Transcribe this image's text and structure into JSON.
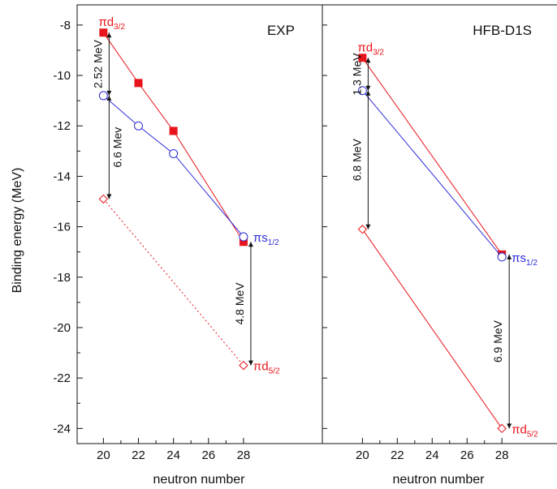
{
  "chart_data": [
    {
      "type": "line",
      "title": "EXP",
      "xlabel": "neutron number",
      "ylabel": "Binding energy (MeV)",
      "xlim": [
        18.5,
        32.5
      ],
      "ylim": [
        -24.6,
        -7.2
      ],
      "x_ticks": [
        "20",
        "22",
        "24",
        "26",
        "28"
      ],
      "y_ticks": [
        "-8",
        "-10",
        "-12",
        "-14",
        "-16",
        "-18",
        "-20",
        "-22",
        "-24"
      ],
      "series": [
        {
          "name": "πd3/2",
          "color": "#e8141b",
          "marker": "filled-square",
          "line": "solid",
          "x": [
            20,
            22,
            24,
            28
          ],
          "y": [
            -8.3,
            -10.3,
            -12.2,
            -16.6
          ]
        },
        {
          "name": "πs1/2",
          "color": "#2d2dd9",
          "marker": "open-circle",
          "line": "solid",
          "x": [
            20,
            22,
            24,
            28
          ],
          "y": [
            -10.8,
            -12.0,
            -13.1,
            -16.4
          ]
        },
        {
          "name": "πd5/2",
          "color": "#e8141b",
          "marker": "open-diamond",
          "line": "dotted",
          "x": [
            20,
            28
          ],
          "y": [
            -14.9,
            -21.5
          ]
        }
      ],
      "level_labels": [
        {
          "base": "πd",
          "sub": "3/2",
          "color": "#e8141b",
          "x": 20,
          "y": -8.3
        },
        {
          "base": "πs",
          "sub": "1/2",
          "color": "#2d2dd9",
          "x": 28,
          "y": -16.4
        },
        {
          "base": "πd",
          "sub": "5/2",
          "color": "#e8141b",
          "x": 28,
          "y": -21.5
        }
      ],
      "annotations": [
        {
          "text": "2.52 MeV",
          "x": 20,
          "from": -8.3,
          "to": -10.8
        },
        {
          "text": "6.6 Mev",
          "x": 20,
          "from": -10.8,
          "to": -14.9
        },
        {
          "text": "4.8 MeV",
          "x": 28,
          "from": -16.6,
          "to": -21.5
        }
      ]
    },
    {
      "type": "line",
      "title": "HFB-D1S",
      "xlabel": "neutron number",
      "ylabel": "",
      "xlim": [
        17.7,
        31.3
      ],
      "ylim": [
        -24.6,
        -7.2
      ],
      "x_ticks": [
        "20",
        "22",
        "24",
        "26",
        "28"
      ],
      "y_ticks": [],
      "series": [
        {
          "name": "πd3/2",
          "color": "#e8141b",
          "marker": "filled-square",
          "line": "solid",
          "x": [
            20,
            28
          ],
          "y": [
            -9.3,
            -17.1
          ]
        },
        {
          "name": "πs1/2",
          "color": "#2d2dd9",
          "marker": "open-circle",
          "line": "solid",
          "x": [
            20,
            28
          ],
          "y": [
            -10.6,
            -17.2
          ]
        },
        {
          "name": "πd5/2",
          "color": "#e8141b",
          "marker": "open-diamond",
          "line": "solid",
          "x": [
            20,
            28
          ],
          "y": [
            -16.1,
            -24.0
          ]
        }
      ],
      "level_labels": [
        {
          "base": "πd",
          "sub": "3/2",
          "color": "#e8141b",
          "x": 20,
          "y": -9.3
        },
        {
          "base": "πs",
          "sub": "1/2",
          "color": "#2d2dd9",
          "x": 28,
          "y": -17.2
        },
        {
          "base": "πd",
          "sub": "5/2",
          "color": "#e8141b",
          "x": 28,
          "y": -24.0
        }
      ],
      "annotations": [
        {
          "text": "1.3 MeV",
          "x": 20,
          "from": -9.3,
          "to": -10.6
        },
        {
          "text": "6.8 MeV",
          "x": 20,
          "from": -10.6,
          "to": -16.1
        },
        {
          "text": "6.9 MeV",
          "x": 28,
          "from": -17.1,
          "to": -24.0
        }
      ]
    }
  ]
}
